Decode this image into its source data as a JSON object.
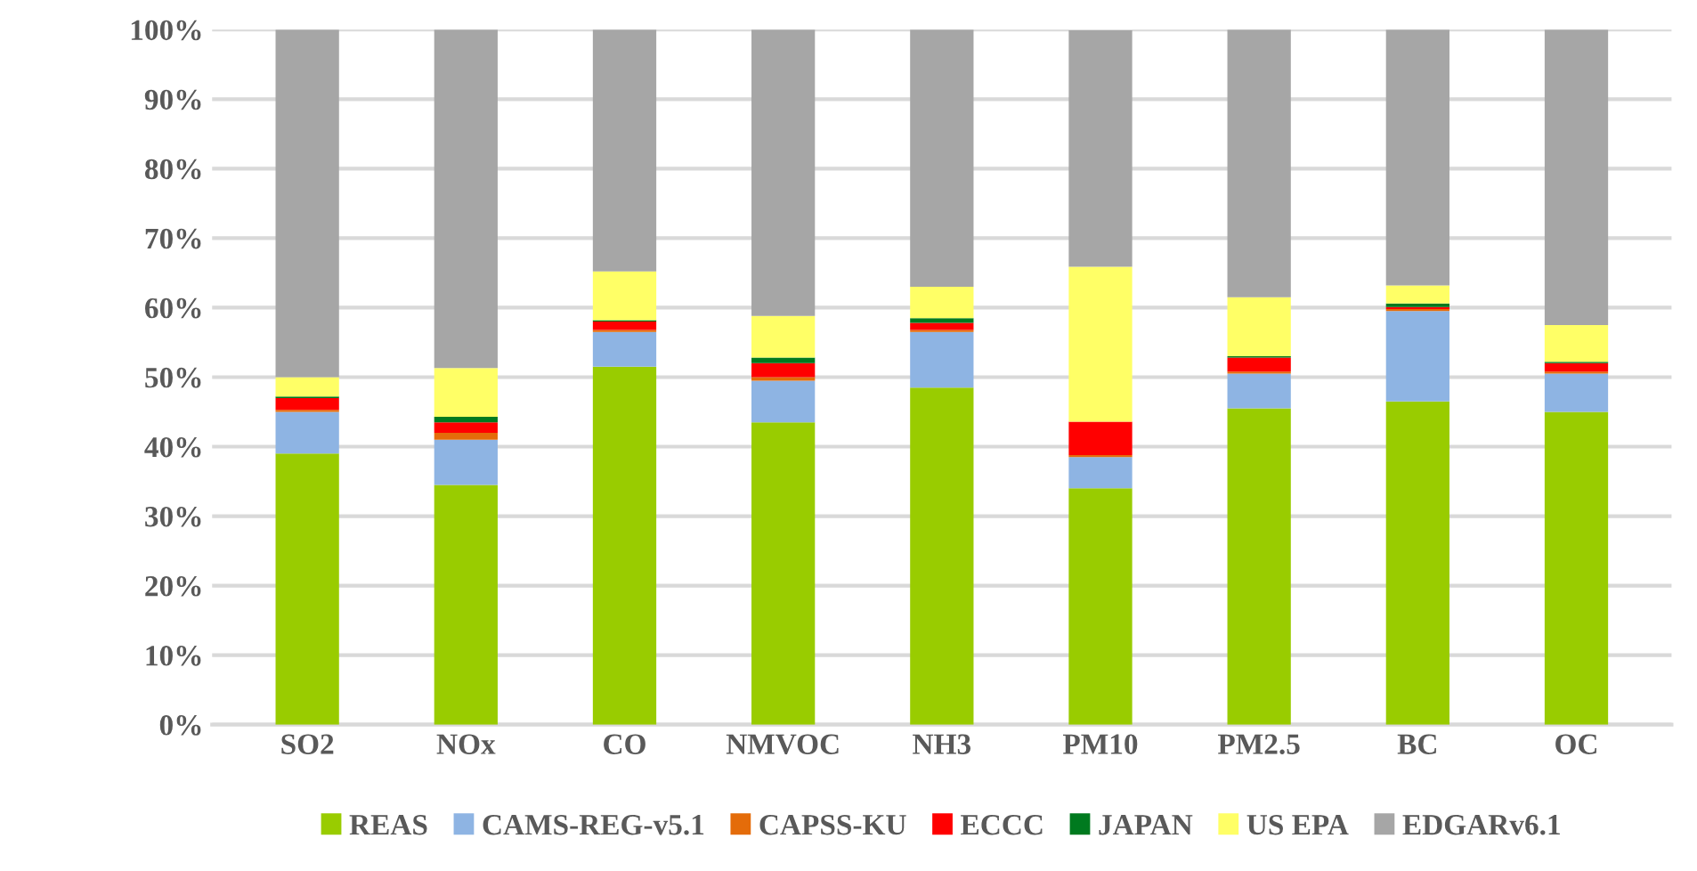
{
  "chart_data": {
    "type": "bar",
    "stacked": true,
    "categories": [
      "SO2",
      "NOx",
      "CO",
      "NMVOC",
      "NH3",
      "PM10",
      "PM2.5",
      "BC",
      "OC"
    ],
    "series": [
      {
        "name": "REAS",
        "color": "#99cc00",
        "values": [
          39,
          34.5,
          51.5,
          43.5,
          48.5,
          34,
          45.5,
          46.5,
          45
        ]
      },
      {
        "name": "CAMS-REG-v5.1",
        "color": "#8eb4e3",
        "values": [
          6,
          6.5,
          5,
          6,
          8,
          4.5,
          5,
          13,
          5.5
        ]
      },
      {
        "name": "CAPSS-KU",
        "color": "#e46c0a",
        "values": [
          0.3,
          1,
          0.3,
          0.5,
          0.3,
          0.3,
          0.3,
          0.3,
          0.3
        ]
      },
      {
        "name": "ECCC",
        "color": "#ff0000",
        "values": [
          1.7,
          1.5,
          1.2,
          2,
          1,
          4.8,
          2,
          0.3,
          1.2
        ]
      },
      {
        "name": "JAPAN",
        "color": "#007a1f",
        "values": [
          0.2,
          0.8,
          0.2,
          0.8,
          0.7,
          null,
          0.2,
          0.5,
          0.2
        ]
      },
      {
        "name": "US EPA",
        "color": "#ffff66",
        "values": [
          2.8,
          7,
          7,
          6,
          4.5,
          22.3,
          8.5,
          2.6,
          5.3
        ]
      },
      {
        "name": "EDGARv6.1",
        "color": "#a6a6a6",
        "values": [
          50,
          48.7,
          34.8,
          41.2,
          37,
          34,
          38.5,
          36.8,
          42.5
        ]
      }
    ],
    "ylim": [
      0,
      100
    ],
    "yticks": [
      {
        "value": 0,
        "label": "0%"
      },
      {
        "value": 10,
        "label": "10%"
      },
      {
        "value": 20,
        "label": "20%"
      },
      {
        "value": 30,
        "label": "30%"
      },
      {
        "value": 40,
        "label": "40%"
      },
      {
        "value": 50,
        "label": "50%"
      },
      {
        "value": 60,
        "label": "60%"
      },
      {
        "value": 70,
        "label": "70%"
      },
      {
        "value": 80,
        "label": "80%"
      },
      {
        "value": 90,
        "label": "90%"
      },
      {
        "value": 100,
        "label": "100%"
      }
    ],
    "grid": "y",
    "legend": "bottom"
  }
}
